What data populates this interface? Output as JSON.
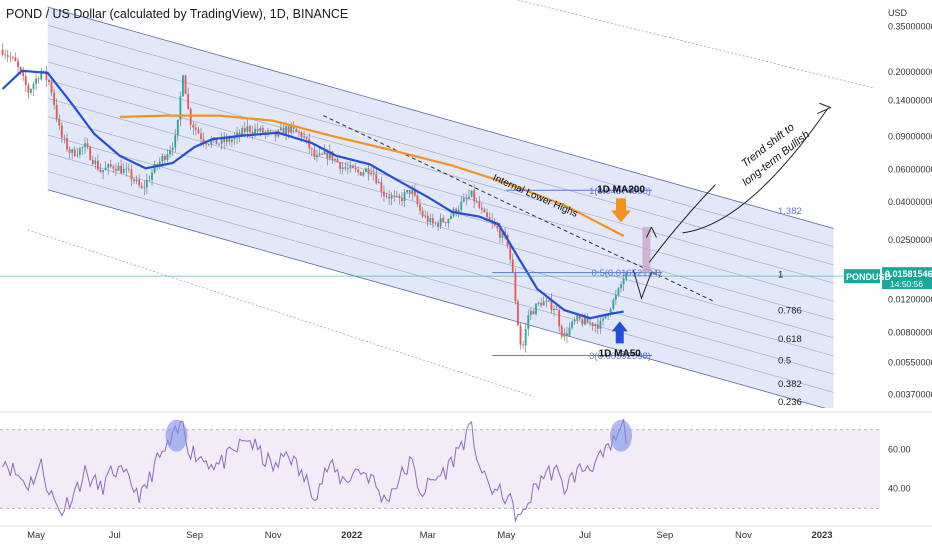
{
  "title": "POND / US Dollar (calculated by TradingView), 1D, BINANCE",
  "colors": {
    "background": "#ffffff",
    "channel_fill": "#dfe6f7",
    "channel_line": "#5b6aa8",
    "candle_up": "#26a69a",
    "candle_down": "#ef5350",
    "candle_wick": "#555555",
    "ma50": "#2350d8",
    "ma200": "#f5921e",
    "fib_line": "#5a78d8",
    "rsi_line": "#8e6bbf",
    "rsi_band": "#f1ecf8",
    "price_tag": "#1aa89a",
    "highlight": "#7a8ee8"
  },
  "chart_data": {
    "type": "line",
    "title": "POND / US Dollar (calculated by TradingView), 1D, BINANCE",
    "price_axis_label": "USD",
    "y_scale": "log",
    "y_ticks": [
      "0.35000000",
      "0.20000000",
      "0.14000000",
      "0.09000000",
      "0.06000000",
      "0.04000000",
      "0.02500000",
      "0.01200000",
      "0.00800000",
      "0.00550000",
      "0.00370000"
    ],
    "y_tick_values": [
      0.35,
      0.2,
      0.14,
      0.09,
      0.06,
      0.04,
      0.025,
      0.012,
      0.008,
      0.0055,
      0.0037
    ],
    "x_ticks": [
      "May",
      "Jul",
      "Sep",
      "Nov",
      "2022",
      "Mar",
      "May",
      "Jul",
      "Sep",
      "Nov",
      "2023"
    ],
    "x_tick_dates": [
      "2021-05-01",
      "2021-07-01",
      "2021-09-01",
      "2021-11-01",
      "2022-01-01",
      "2022-03-01",
      "2022-05-01",
      "2022-07-01",
      "2022-09-01",
      "2022-11-01",
      "2023-01-01"
    ],
    "x_range": [
      "2021-04-03",
      "2023-02-15"
    ],
    "y_range": [
      0.0031,
      0.48
    ],
    "series": [
      {
        "name": "POND price",
        "points": [
          [
            "2021-04-05",
            0.26
          ],
          [
            "2021-04-15",
            0.22
          ],
          [
            "2021-04-25",
            0.155
          ],
          [
            "2021-05-05",
            0.2
          ],
          [
            "2021-05-12",
            0.17
          ],
          [
            "2021-05-20",
            0.09
          ],
          [
            "2021-05-28",
            0.072
          ],
          [
            "2021-06-08",
            0.078
          ],
          [
            "2021-06-20",
            0.058
          ],
          [
            "2021-07-01",
            0.062
          ],
          [
            "2021-07-12",
            0.056
          ],
          [
            "2021-07-22",
            0.046
          ],
          [
            "2021-08-01",
            0.06
          ],
          [
            "2021-08-10",
            0.072
          ],
          [
            "2021-08-18",
            0.088
          ],
          [
            "2021-08-23",
            0.2
          ],
          [
            "2021-08-28",
            0.11
          ],
          [
            "2021-09-08",
            0.085
          ],
          [
            "2021-09-20",
            0.082
          ],
          [
            "2021-10-01",
            0.086
          ],
          [
            "2021-10-12",
            0.098
          ],
          [
            "2021-10-24",
            0.094
          ],
          [
            "2021-11-03",
            0.09
          ],
          [
            "2021-11-12",
            0.098
          ],
          [
            "2021-11-24",
            0.09
          ],
          [
            "2021-12-04",
            0.067
          ],
          [
            "2021-12-14",
            0.072
          ],
          [
            "2021-12-26",
            0.06
          ],
          [
            "2022-01-06",
            0.057
          ],
          [
            "2022-01-16",
            0.06
          ],
          [
            "2022-01-26",
            0.044
          ],
          [
            "2022-02-06",
            0.04
          ],
          [
            "2022-02-16",
            0.046
          ],
          [
            "2022-02-24",
            0.034
          ],
          [
            "2022-03-05",
            0.03
          ],
          [
            "2022-03-16",
            0.032
          ],
          [
            "2022-03-26",
            0.038
          ],
          [
            "2022-04-04",
            0.043
          ],
          [
            "2022-04-14",
            0.033
          ],
          [
            "2022-04-24",
            0.028
          ],
          [
            "2022-05-02",
            0.024
          ],
          [
            "2022-05-06",
            0.016
          ],
          [
            "2022-05-10",
            0.0088
          ],
          [
            "2022-05-13",
            0.0061
          ],
          [
            "2022-05-18",
            0.0098
          ],
          [
            "2022-05-28",
            0.0115
          ],
          [
            "2022-06-08",
            0.0108
          ],
          [
            "2022-06-14",
            0.0074
          ],
          [
            "2022-06-24",
            0.0092
          ],
          [
            "2022-07-04",
            0.0089
          ],
          [
            "2022-07-14",
            0.0087
          ],
          [
            "2022-07-20",
            0.0108
          ],
          [
            "2022-07-26",
            0.0125
          ],
          [
            "2022-07-31",
            0.0155
          ],
          [
            "2022-08-03",
            0.0158
          ]
        ]
      },
      {
        "name": "1D MA50",
        "points": [
          [
            "2021-04-05",
            0.16
          ],
          [
            "2021-04-20",
            0.2
          ],
          [
            "2021-05-10",
            0.195
          ],
          [
            "2021-05-28",
            0.135
          ],
          [
            "2021-06-15",
            0.092
          ],
          [
            "2021-07-05",
            0.07
          ],
          [
            "2021-07-25",
            0.06
          ],
          [
            "2021-08-15",
            0.064
          ],
          [
            "2021-09-01",
            0.078
          ],
          [
            "2021-09-15",
            0.086
          ],
          [
            "2021-10-10",
            0.09
          ],
          [
            "2021-11-05",
            0.093
          ],
          [
            "2021-12-01",
            0.082
          ],
          [
            "2021-12-20",
            0.07
          ],
          [
            "2022-01-15",
            0.063
          ],
          [
            "2022-02-05",
            0.052
          ],
          [
            "2022-03-01",
            0.042
          ],
          [
            "2022-03-20",
            0.035
          ],
          [
            "2022-04-10",
            0.033
          ],
          [
            "2022-04-25",
            0.03
          ],
          [
            "2022-05-10",
            0.02
          ],
          [
            "2022-05-25",
            0.0135
          ],
          [
            "2022-06-15",
            0.0104
          ],
          [
            "2022-07-05",
            0.0094
          ],
          [
            "2022-07-20",
            0.0099
          ],
          [
            "2022-07-31",
            0.0102
          ]
        ]
      },
      {
        "name": "1D MA200",
        "points": [
          [
            "2021-07-05",
            0.113
          ],
          [
            "2021-08-10",
            0.115
          ],
          [
            "2021-09-20",
            0.115
          ],
          [
            "2021-11-01",
            0.108
          ],
          [
            "2021-12-15",
            0.09
          ],
          [
            "2022-02-01",
            0.075
          ],
          [
            "2022-03-20",
            0.062
          ],
          [
            "2022-05-01",
            0.05
          ],
          [
            "2022-06-15",
            0.038
          ],
          [
            "2022-07-31",
            0.026
          ]
        ]
      }
    ],
    "channel": {
      "upper": [
        [
          "2021-05-10",
          0.44
        ],
        [
          "2023-01-10",
          0.0285
        ]
      ],
      "lower": [
        [
          "2021-05-10",
          0.046
        ],
        [
          "2023-01-10",
          0.003
        ]
      ],
      "inner_lines": 9
    },
    "internal_lower_highs_line": [
      [
        "2021-12-10",
        0.115
      ],
      [
        "2022-10-10",
        0.0115
      ]
    ],
    "fib_levels": [
      {
        "label": "1(0.04574960)",
        "value": 0.0457,
        "from": "2022-05-01",
        "to": "2022-08-22"
      },
      {
        "label": "0.5(0.01652194)",
        "value": 0.01652,
        "from": "2022-04-20",
        "to": "2022-08-30"
      },
      {
        "label": "0(0.00592598)",
        "value": 0.00593,
        "from": "2022-04-20",
        "to": "2022-08-22"
      }
    ],
    "channel_fib_labels": [
      {
        "label": "1.382",
        "value": 0.0355
      },
      {
        "label": "1",
        "value": 0.0162
      },
      {
        "label": "0.786",
        "value": 0.0104
      },
      {
        "label": "0.618",
        "value": 0.0073
      },
      {
        "label": "0.5",
        "value": 0.0056
      },
      {
        "label": "0.382",
        "value": 0.0042
      },
      {
        "label": "0.236",
        "value": 0.00335
      }
    ],
    "annotations": {
      "ma200_label": "1D MA200",
      "ma50_label": "1D MA50",
      "internal_label": "Internal Lower Highs",
      "trend_label_1": "Trend shift to",
      "trend_label_2": "long-term Bullish"
    },
    "last_price": {
      "symbol": "PONDUSD",
      "value": "0.01581546",
      "time": "14:50:56",
      "value_num": 0.01581546
    },
    "rsi": {
      "y_ticks": [
        "60.00",
        "40.00"
      ],
      "y_tick_values": [
        60,
        40
      ],
      "band": [
        30,
        70
      ],
      "range": [
        23,
        76
      ],
      "points": [
        [
          "2021-04-05",
          56
        ],
        [
          "2021-04-15",
          48
        ],
        [
          "2021-04-25",
          42
        ],
        [
          "2021-05-05",
          52
        ],
        [
          "2021-05-12",
          38
        ],
        [
          "2021-05-20",
          28
        ],
        [
          "2021-05-28",
          36
        ],
        [
          "2021-06-08",
          48
        ],
        [
          "2021-06-20",
          40
        ],
        [
          "2021-07-01",
          50
        ],
        [
          "2021-07-12",
          44
        ],
        [
          "2021-07-22",
          36
        ],
        [
          "2021-08-01",
          52
        ],
        [
          "2021-08-10",
          60
        ],
        [
          "2021-08-16",
          66
        ],
        [
          "2021-08-20",
          70
        ],
        [
          "2021-08-23",
          74
        ],
        [
          "2021-08-28",
          60
        ],
        [
          "2021-09-08",
          55
        ],
        [
          "2021-09-20",
          52
        ],
        [
          "2021-10-01",
          58
        ],
        [
          "2021-10-12",
          66
        ],
        [
          "2021-10-24",
          56
        ],
        [
          "2021-11-03",
          50
        ],
        [
          "2021-11-12",
          60
        ],
        [
          "2021-11-24",
          46
        ],
        [
          "2021-12-04",
          38
        ],
        [
          "2021-12-14",
          52
        ],
        [
          "2021-12-26",
          44
        ],
        [
          "2022-01-06",
          50
        ],
        [
          "2022-01-16",
          46
        ],
        [
          "2022-01-26",
          34
        ],
        [
          "2022-02-06",
          44
        ],
        [
          "2022-02-16",
          54
        ],
        [
          "2022-02-24",
          38
        ],
        [
          "2022-03-05",
          44
        ],
        [
          "2022-03-16",
          50
        ],
        [
          "2022-03-26",
          62
        ],
        [
          "2022-04-04",
          70
        ],
        [
          "2022-04-14",
          44
        ],
        [
          "2022-04-24",
          38
        ],
        [
          "2022-05-02",
          36
        ],
        [
          "2022-05-06",
          30
        ],
        [
          "2022-05-10",
          26
        ],
        [
          "2022-05-13",
          24
        ],
        [
          "2022-05-18",
          34
        ],
        [
          "2022-05-28",
          46
        ],
        [
          "2022-06-08",
          50
        ],
        [
          "2022-06-14",
          40
        ],
        [
          "2022-06-24",
          48
        ],
        [
          "2022-07-04",
          52
        ],
        [
          "2022-07-14",
          55
        ],
        [
          "2022-07-20",
          60
        ],
        [
          "2022-07-26",
          66
        ],
        [
          "2022-07-31",
          72
        ],
        [
          "2022-08-03",
          64
        ]
      ],
      "highlights": [
        "2021-08-18",
        "2022-07-29"
      ]
    }
  }
}
